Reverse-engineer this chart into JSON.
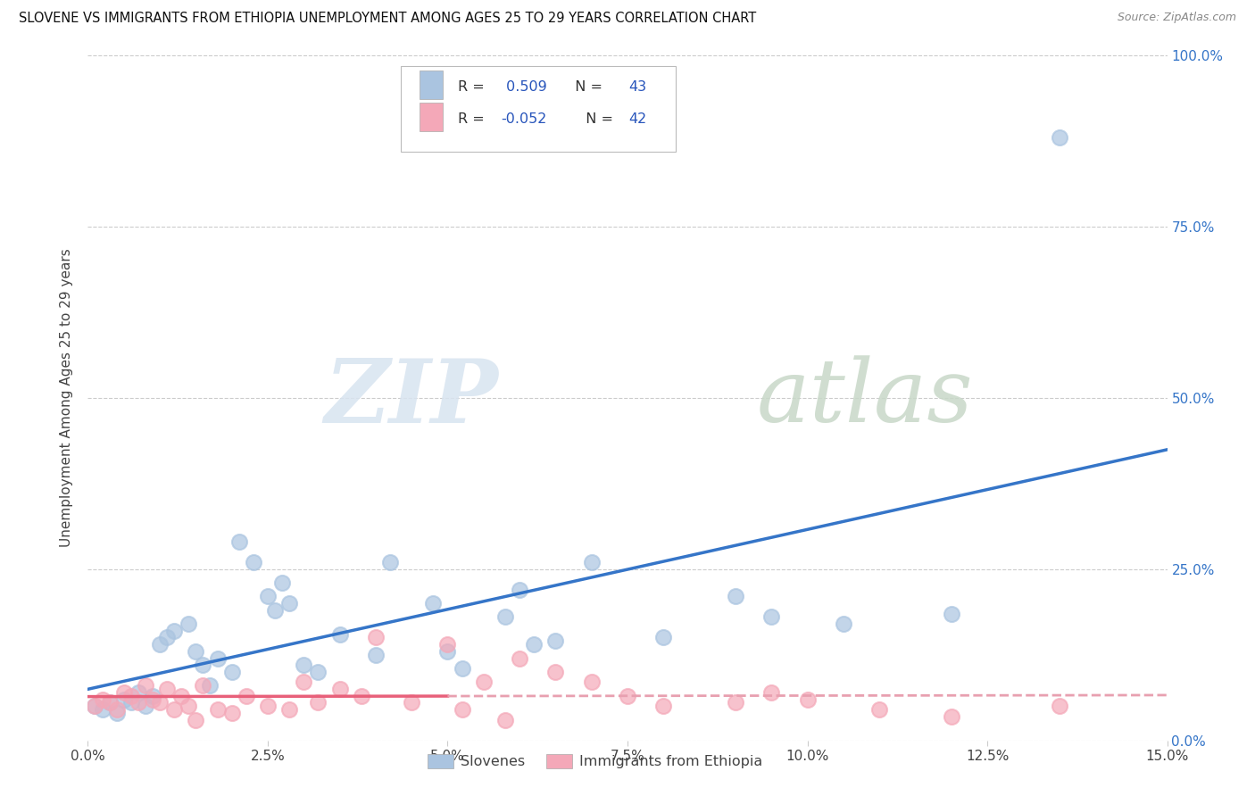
{
  "title": "SLOVENE VS IMMIGRANTS FROM ETHIOPIA UNEMPLOYMENT AMONG AGES 25 TO 29 YEARS CORRELATION CHART",
  "source": "Source: ZipAtlas.com",
  "ylabel": "Unemployment Among Ages 25 to 29 years",
  "xlabel_vals": [
    0.0,
    2.5,
    5.0,
    7.5,
    10.0,
    12.5,
    15.0
  ],
  "ylabel_vals": [
    0.0,
    25.0,
    50.0,
    75.0,
    100.0
  ],
  "xlim": [
    0.0,
    15.0
  ],
  "ylim": [
    0.0,
    100.0
  ],
  "slovene_R": 0.509,
  "slovene_N": 43,
  "ethiopia_R": -0.052,
  "ethiopia_N": 42,
  "slovene_color": "#aac4e0",
  "ethiopia_color": "#f4a8b8",
  "slovene_line_color": "#3575c8",
  "ethiopia_line_color": "#e8607a",
  "ethiopia_line_solid_color": "#e8607a",
  "ethiopia_line_dash_color": "#e8a0b0",
  "legend_R_color": "#2855bb",
  "legend_label1": "Slovenes",
  "legend_label2": "Immigrants from Ethiopia",
  "watermark_zip": "ZIP",
  "watermark_atlas": "atlas",
  "slovene_x": [
    0.1,
    0.2,
    0.3,
    0.4,
    0.5,
    0.6,
    0.7,
    0.8,
    0.9,
    1.0,
    1.1,
    1.2,
    1.4,
    1.5,
    1.6,
    1.7,
    1.8,
    2.0,
    2.1,
    2.3,
    2.5,
    2.6,
    2.7,
    2.8,
    3.0,
    3.2,
    3.5,
    4.0,
    4.2,
    4.8,
    5.0,
    5.2,
    5.8,
    6.0,
    6.2,
    6.5,
    7.0,
    8.0,
    9.0,
    9.5,
    10.5,
    12.0,
    13.5
  ],
  "slovene_y": [
    5.0,
    4.5,
    5.5,
    4.0,
    6.0,
    5.5,
    7.0,
    5.0,
    6.5,
    14.0,
    15.0,
    16.0,
    17.0,
    13.0,
    11.0,
    8.0,
    12.0,
    10.0,
    29.0,
    26.0,
    21.0,
    19.0,
    23.0,
    20.0,
    11.0,
    10.0,
    15.5,
    12.5,
    26.0,
    20.0,
    13.0,
    10.5,
    18.0,
    22.0,
    14.0,
    14.5,
    26.0,
    15.0,
    21.0,
    18.0,
    17.0,
    18.5,
    88.0
  ],
  "ethiopia_x": [
    0.1,
    0.2,
    0.3,
    0.4,
    0.5,
    0.6,
    0.7,
    0.8,
    0.9,
    1.0,
    1.1,
    1.2,
    1.3,
    1.4,
    1.5,
    1.6,
    1.8,
    2.0,
    2.2,
    2.5,
    2.8,
    3.0,
    3.2,
    3.5,
    3.8,
    4.0,
    4.5,
    5.0,
    5.2,
    5.5,
    5.8,
    6.0,
    6.5,
    7.0,
    7.5,
    8.0,
    9.0,
    9.5,
    10.0,
    11.0,
    12.0,
    13.5
  ],
  "ethiopia_y": [
    5.0,
    6.0,
    5.5,
    4.5,
    7.0,
    6.5,
    5.5,
    8.0,
    6.0,
    5.5,
    7.5,
    4.5,
    6.5,
    5.0,
    3.0,
    8.0,
    4.5,
    4.0,
    6.5,
    5.0,
    4.5,
    8.5,
    5.5,
    7.5,
    6.5,
    15.0,
    5.5,
    14.0,
    4.5,
    8.5,
    3.0,
    12.0,
    10.0,
    8.5,
    6.5,
    5.0,
    5.5,
    7.0,
    6.0,
    4.5,
    3.5,
    5.0
  ],
  "ethiopia_solid_end_x": 5.0
}
